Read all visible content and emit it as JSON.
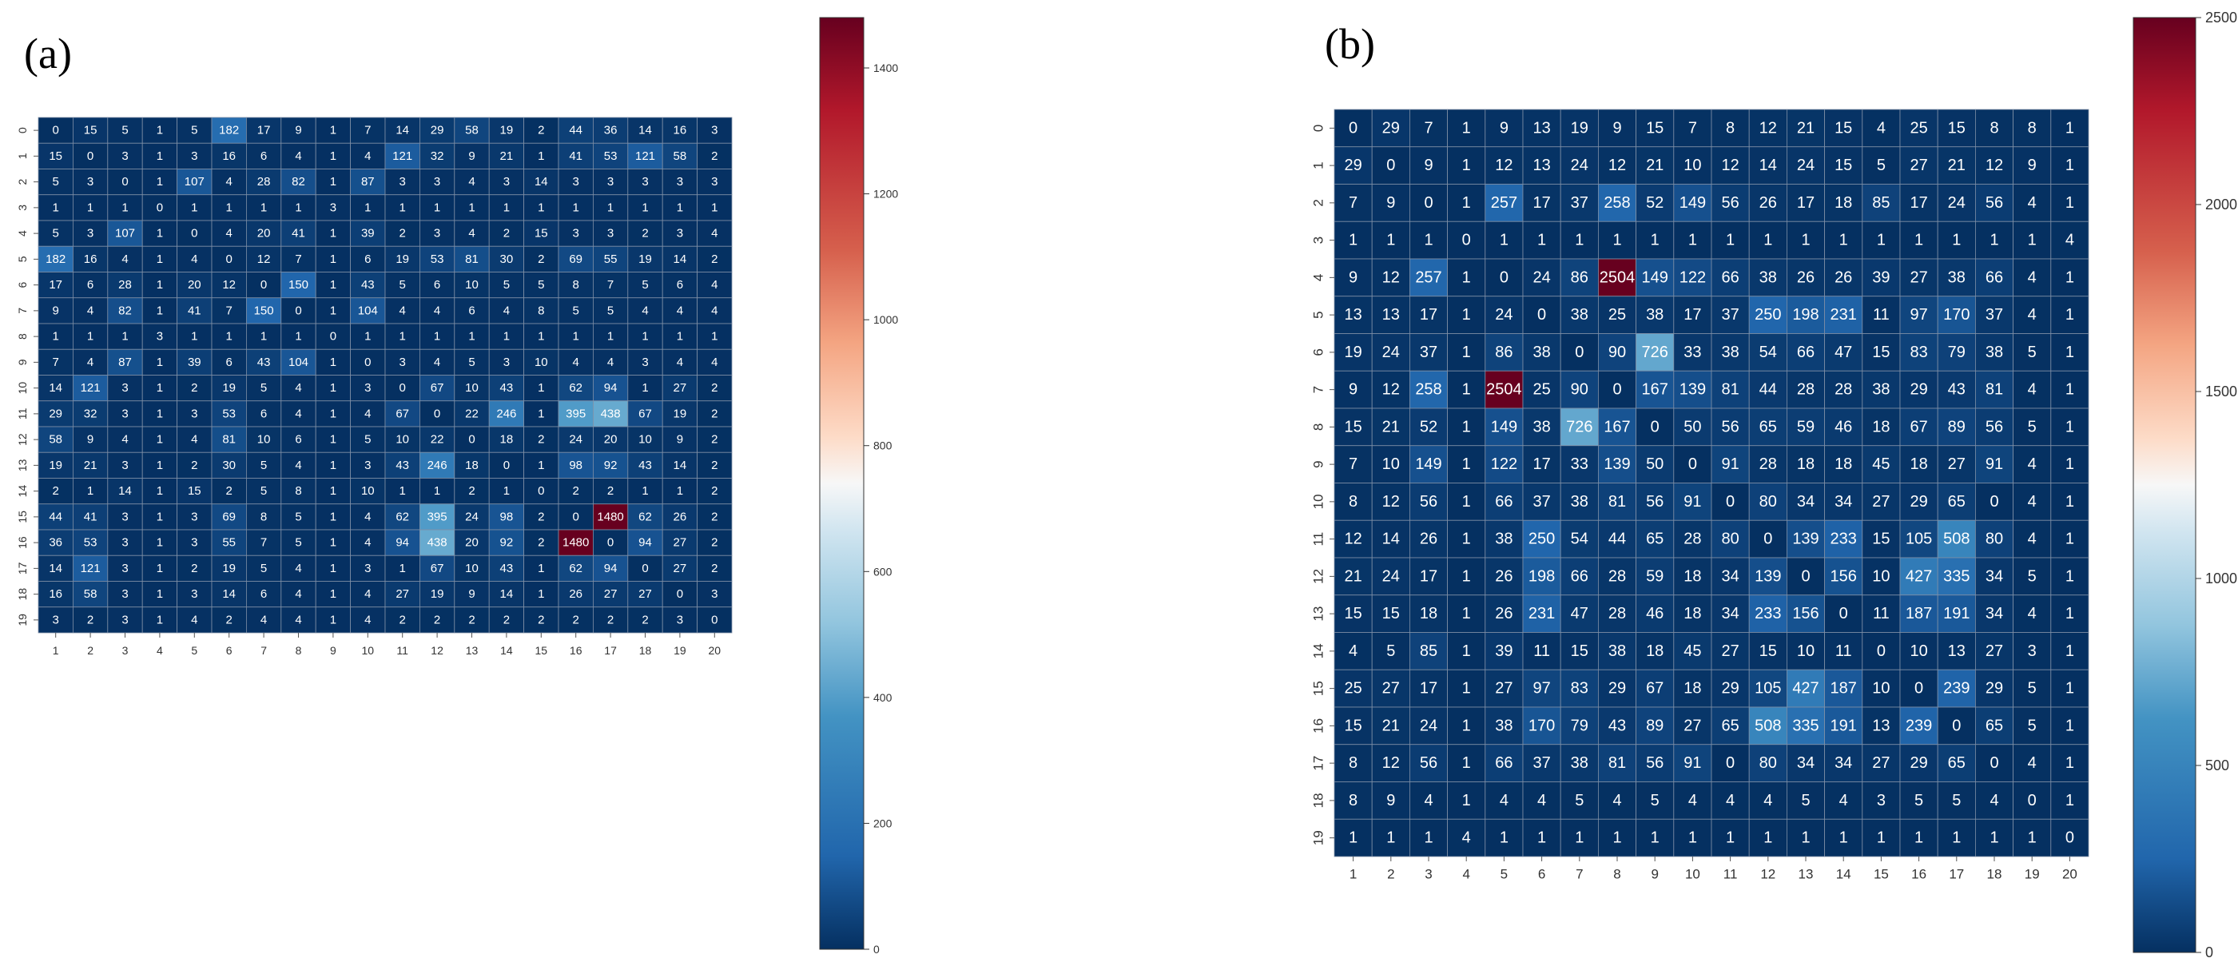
{
  "panels": [
    {
      "label": "(a)"
    },
    {
      "label": "(b)"
    }
  ],
  "chart_data": [
    {
      "type": "heatmap",
      "title": "(a)",
      "colormap": "RdBu_r",
      "row_labels": [
        "0",
        "1",
        "2",
        "3",
        "4",
        "5",
        "6",
        "7",
        "8",
        "9",
        "10",
        "11",
        "12",
        "13",
        "14",
        "15",
        "16",
        "17",
        "18",
        "19"
      ],
      "col_labels": [
        "1",
        "2",
        "3",
        "4",
        "5",
        "6",
        "7",
        "8",
        "9",
        "10",
        "11",
        "12",
        "13",
        "14",
        "15",
        "16",
        "17",
        "18",
        "19",
        "20"
      ],
      "vmin": 0,
      "vmax": 1480,
      "colorbar_ticks": [
        0,
        200,
        400,
        600,
        800,
        1000,
        1200,
        1400
      ],
      "values": [
        [
          0,
          15,
          5,
          1,
          5,
          182,
          17,
          9,
          1,
          7,
          14,
          29,
          58,
          19,
          2,
          44,
          36,
          14,
          16,
          3
        ],
        [
          15,
          0,
          3,
          1,
          3,
          16,
          6,
          4,
          1,
          4,
          121,
          32,
          9,
          21,
          1,
          41,
          53,
          121,
          58,
          2
        ],
        [
          5,
          3,
          0,
          1,
          107,
          4,
          28,
          82,
          1,
          87,
          3,
          3,
          4,
          3,
          14,
          3,
          3,
          3,
          3,
          3
        ],
        [
          1,
          1,
          1,
          0,
          1,
          1,
          1,
          1,
          3,
          1,
          1,
          1,
          1,
          1,
          1,
          1,
          1,
          1,
          1,
          1
        ],
        [
          5,
          3,
          107,
          1,
          0,
          4,
          20,
          41,
          1,
          39,
          2,
          3,
          4,
          2,
          15,
          3,
          3,
          2,
          3,
          4
        ],
        [
          182,
          16,
          4,
          1,
          4,
          0,
          12,
          7,
          1,
          6,
          19,
          53,
          81,
          30,
          2,
          69,
          55,
          19,
          14,
          2
        ],
        [
          17,
          6,
          28,
          1,
          20,
          12,
          0,
          150,
          1,
          43,
          5,
          6,
          10,
          5,
          5,
          8,
          7,
          5,
          6,
          4
        ],
        [
          9,
          4,
          82,
          1,
          41,
          7,
          150,
          0,
          1,
          104,
          4,
          4,
          6,
          4,
          8,
          5,
          5,
          4,
          4,
          4
        ],
        [
          1,
          1,
          1,
          3,
          1,
          1,
          1,
          1,
          0,
          1,
          1,
          1,
          1,
          1,
          1,
          1,
          1,
          1,
          1,
          1
        ],
        [
          7,
          4,
          87,
          1,
          39,
          6,
          43,
          104,
          1,
          0,
          3,
          4,
          5,
          3,
          10,
          4,
          4,
          3,
          4,
          4
        ],
        [
          14,
          121,
          3,
          1,
          2,
          19,
          5,
          4,
          1,
          3,
          0,
          67,
          10,
          43,
          1,
          62,
          94,
          1,
          27,
          2
        ],
        [
          29,
          32,
          3,
          1,
          3,
          53,
          6,
          4,
          1,
          4,
          67,
          0,
          22,
          246,
          1,
          395,
          438,
          67,
          19,
          2
        ],
        [
          58,
          9,
          4,
          1,
          4,
          81,
          10,
          6,
          1,
          5,
          10,
          22,
          0,
          18,
          2,
          24,
          20,
          10,
          9,
          2
        ],
        [
          19,
          21,
          3,
          1,
          2,
          30,
          5,
          4,
          1,
          3,
          43,
          246,
          18,
          0,
          1,
          98,
          92,
          43,
          14,
          2
        ],
        [
          2,
          1,
          14,
          1,
          15,
          2,
          5,
          8,
          1,
          10,
          1,
          1,
          2,
          1,
          0,
          2,
          2,
          1,
          1,
          2
        ],
        [
          44,
          41,
          3,
          1,
          3,
          69,
          8,
          5,
          1,
          4,
          62,
          395,
          24,
          98,
          2,
          0,
          1480,
          62,
          26,
          2
        ],
        [
          36,
          53,
          3,
          1,
          3,
          55,
          7,
          5,
          1,
          4,
          94,
          438,
          20,
          92,
          2,
          1480,
          0,
          94,
          27,
          2
        ],
        [
          14,
          121,
          3,
          1,
          2,
          19,
          5,
          4,
          1,
          3,
          1,
          67,
          10,
          43,
          1,
          62,
          94,
          0,
          27,
          2
        ],
        [
          16,
          58,
          3,
          1,
          3,
          14,
          6,
          4,
          1,
          4,
          27,
          19,
          9,
          14,
          1,
          26,
          27,
          27,
          0,
          3
        ],
        [
          3,
          2,
          3,
          1,
          4,
          2,
          4,
          4,
          1,
          4,
          2,
          2,
          2,
          2,
          2,
          2,
          2,
          2,
          3,
          0
        ]
      ]
    },
    {
      "type": "heatmap",
      "title": "(b)",
      "colormap": "RdBu_r",
      "row_labels": [
        "0",
        "1",
        "2",
        "3",
        "4",
        "5",
        "6",
        "7",
        "8",
        "9",
        "10",
        "11",
        "12",
        "13",
        "14",
        "15",
        "16",
        "17",
        "18",
        "19"
      ],
      "col_labels": [
        "1",
        "2",
        "3",
        "4",
        "5",
        "6",
        "7",
        "8",
        "9",
        "10",
        "11",
        "12",
        "13",
        "14",
        "15",
        "16",
        "17",
        "18",
        "19",
        "20"
      ],
      "vmin": 0,
      "vmax": 2504,
      "colorbar_max": 2500,
      "colorbar_ticks": [
        0,
        500,
        1000,
        1500,
        2000,
        2500
      ],
      "values": [
        [
          0,
          29,
          7,
          1,
          9,
          13,
          19,
          9,
          15,
          7,
          8,
          12,
          21,
          15,
          4,
          25,
          15,
          8,
          8,
          1
        ],
        [
          29,
          0,
          9,
          1,
          12,
          13,
          24,
          12,
          21,
          10,
          12,
          14,
          24,
          15,
          5,
          27,
          21,
          12,
          9,
          1
        ],
        [
          7,
          9,
          0,
          1,
          257,
          17,
          37,
          258,
          52,
          149,
          56,
          26,
          17,
          18,
          85,
          17,
          24,
          56,
          4,
          1
        ],
        [
          1,
          1,
          1,
          0,
          1,
          1,
          1,
          1,
          1,
          1,
          1,
          1,
          1,
          1,
          1,
          1,
          1,
          1,
          1,
          4
        ],
        [
          9,
          12,
          257,
          1,
          0,
          24,
          86,
          2504,
          149,
          122,
          66,
          38,
          26,
          26,
          39,
          27,
          38,
          66,
          4,
          1
        ],
        [
          13,
          13,
          17,
          1,
          24,
          0,
          38,
          25,
          38,
          17,
          37,
          250,
          198,
          231,
          11,
          97,
          170,
          37,
          4,
          1
        ],
        [
          19,
          24,
          37,
          1,
          86,
          38,
          0,
          90,
          726,
          33,
          38,
          54,
          66,
          47,
          15,
          83,
          79,
          38,
          5,
          1
        ],
        [
          9,
          12,
          258,
          1,
          2504,
          25,
          90,
          0,
          167,
          139,
          81,
          44,
          28,
          28,
          38,
          29,
          43,
          81,
          4,
          1
        ],
        [
          15,
          21,
          52,
          1,
          149,
          38,
          726,
          167,
          0,
          50,
          56,
          65,
          59,
          46,
          18,
          67,
          89,
          56,
          5,
          1
        ],
        [
          7,
          10,
          149,
          1,
          122,
          17,
          33,
          139,
          50,
          0,
          91,
          28,
          18,
          18,
          45,
          18,
          27,
          91,
          4,
          1
        ],
        [
          8,
          12,
          56,
          1,
          66,
          37,
          38,
          81,
          56,
          91,
          0,
          80,
          34,
          34,
          27,
          29,
          65,
          0,
          4,
          1
        ],
        [
          12,
          14,
          26,
          1,
          38,
          250,
          54,
          44,
          65,
          28,
          80,
          0,
          139,
          233,
          15,
          105,
          508,
          80,
          4,
          1
        ],
        [
          21,
          24,
          17,
          1,
          26,
          198,
          66,
          28,
          59,
          18,
          34,
          139,
          0,
          156,
          10,
          427,
          335,
          34,
          5,
          1
        ],
        [
          15,
          15,
          18,
          1,
          26,
          231,
          47,
          28,
          46,
          18,
          34,
          233,
          156,
          0,
          11,
          187,
          191,
          34,
          4,
          1
        ],
        [
          4,
          5,
          85,
          1,
          39,
          11,
          15,
          38,
          18,
          45,
          27,
          15,
          10,
          11,
          0,
          10,
          13,
          27,
          3,
          1
        ],
        [
          25,
          27,
          17,
          1,
          27,
          97,
          83,
          29,
          67,
          18,
          29,
          105,
          427,
          187,
          10,
          0,
          239,
          29,
          5,
          1
        ],
        [
          15,
          21,
          24,
          1,
          38,
          170,
          79,
          43,
          89,
          27,
          65,
          508,
          335,
          191,
          13,
          239,
          0,
          65,
          5,
          1
        ],
        [
          8,
          12,
          56,
          1,
          66,
          37,
          38,
          81,
          56,
          91,
          0,
          80,
          34,
          34,
          27,
          29,
          65,
          0,
          4,
          1
        ],
        [
          8,
          9,
          4,
          1,
          4,
          4,
          5,
          4,
          5,
          4,
          4,
          4,
          5,
          4,
          3,
          5,
          5,
          4,
          0,
          1
        ],
        [
          1,
          1,
          1,
          4,
          1,
          1,
          1,
          1,
          1,
          1,
          1,
          1,
          1,
          1,
          1,
          1,
          1,
          1,
          1,
          0
        ]
      ]
    }
  ]
}
